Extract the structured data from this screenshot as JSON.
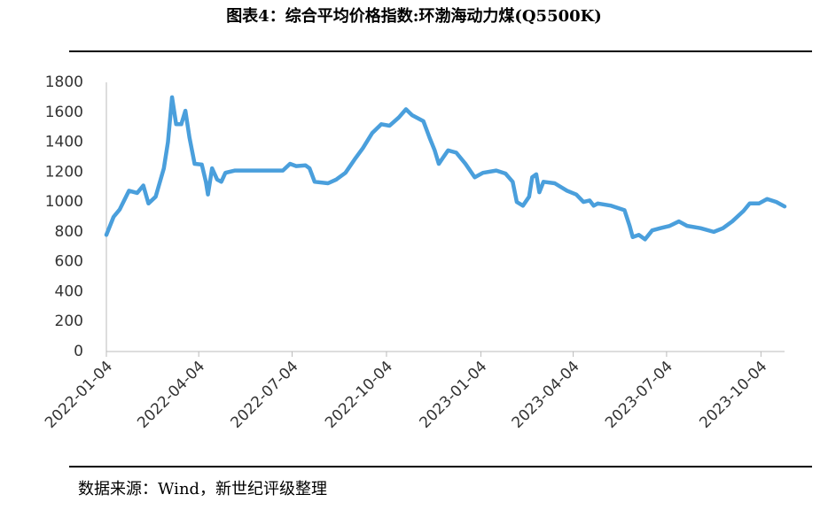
{
  "chart_data": {
    "type": "line",
    "title": "图表4：综合平均价格指数:环渤海动力煤(Q5500K)",
    "source": "数据来源：Wind，新世纪评级整理",
    "x": [
      "2022-01-04",
      "2022-01-11",
      "2022-01-17",
      "2022-01-26",
      "2022-02-03",
      "2022-02-09",
      "2022-02-14",
      "2022-02-21",
      "2022-03-01",
      "2022-03-05",
      "2022-03-09",
      "2022-03-13",
      "2022-03-18",
      "2022-03-22",
      "2022-03-26",
      "2022-03-31",
      "2022-04-07",
      "2022-04-11",
      "2022-04-13",
      "2022-04-17",
      "2022-04-22",
      "2022-04-26",
      "2022-04-30",
      "2022-05-09",
      "2022-06-25",
      "2022-07-02",
      "2022-07-08",
      "2022-07-17",
      "2022-07-21",
      "2022-07-26",
      "2022-08-08",
      "2022-08-16",
      "2022-08-25",
      "2022-09-03",
      "2022-09-11",
      "2022-09-20",
      "2022-09-29",
      "2022-10-07",
      "2022-10-16",
      "2022-10-23",
      "2022-10-29",
      "2022-11-09",
      "2022-11-15",
      "2022-11-20",
      "2022-11-24",
      "2022-11-28",
      "2022-12-03",
      "2022-12-11",
      "2022-12-20",
      "2022-12-29",
      "2023-01-06",
      "2023-01-19",
      "2023-01-28",
      "2023-02-04",
      "2023-02-08",
      "2023-02-14",
      "2023-02-20",
      "2023-02-23",
      "2023-02-27",
      "2023-03-02",
      "2023-03-06",
      "2023-03-17",
      "2023-03-29",
      "2023-04-07",
      "2023-04-14",
      "2023-04-20",
      "2023-04-24",
      "2023-04-28",
      "2023-05-11",
      "2023-05-24",
      "2023-05-29",
      "2023-06-01",
      "2023-06-07",
      "2023-06-13",
      "2023-06-20",
      "2023-06-28",
      "2023-07-07",
      "2023-07-16",
      "2023-07-24",
      "2023-08-06",
      "2023-08-19",
      "2023-08-28",
      "2023-09-06",
      "2023-09-17",
      "2023-09-23",
      "2023-10-02",
      "2023-10-10",
      "2023-10-19",
      "2023-10-27"
    ],
    "series": [
      {
        "name": "综合平均价格指数:环渤海动力煤(Q5500K)",
        "color": "#4a9fdc",
        "values": [
          780,
          900,
          950,
          1075,
          1060,
          1110,
          990,
          1035,
          1225,
          1400,
          1700,
          1520,
          1520,
          1610,
          1430,
          1255,
          1250,
          1135,
          1050,
          1225,
          1150,
          1135,
          1195,
          1210,
          1210,
          1255,
          1240,
          1245,
          1225,
          1135,
          1125,
          1150,
          1195,
          1285,
          1360,
          1460,
          1520,
          1510,
          1565,
          1620,
          1580,
          1540,
          1430,
          1345,
          1255,
          1295,
          1345,
          1330,
          1255,
          1165,
          1195,
          1210,
          1190,
          1135,
          1000,
          975,
          1035,
          1165,
          1185,
          1065,
          1135,
          1125,
          1075,
          1050,
          1000,
          1010,
          975,
          990,
          975,
          945,
          840,
          765,
          780,
          750,
          810,
          825,
          840,
          870,
          840,
          825,
          800,
          825,
          870,
          940,
          990,
          990,
          1020,
          1000,
          970
        ]
      }
    ],
    "xlim": [
      "2022-01-04",
      "2023-10-27"
    ],
    "xticks": [
      "2022-01-04",
      "2022-04-04",
      "2022-07-04",
      "2022-10-04",
      "2023-01-04",
      "2023-04-04",
      "2023-07-04",
      "2023-10-04"
    ],
    "ylim": [
      0,
      1800
    ],
    "yticks": [
      0,
      200,
      400,
      600,
      800,
      1000,
      1200,
      1400,
      1600,
      1800
    ],
    "grid": false
  }
}
